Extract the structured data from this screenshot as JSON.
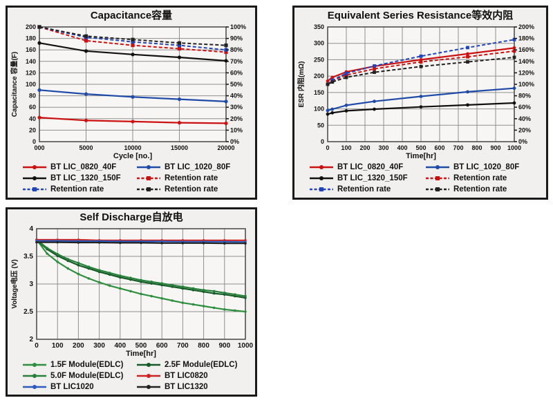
{
  "colors": {
    "panel_bg": "#f1f0ee",
    "plot_bg": "#f7f6f4",
    "grid": "#8f8f8f",
    "frame": "#444444",
    "red": "#cc1111",
    "blue": "#1f4aa8",
    "black": "#111111",
    "green_light": "#2f8f3f",
    "green_dark": "#155a26"
  },
  "chart_data": [
    {
      "type": "line",
      "title": "Capacitance容量",
      "y_left": {
        "label": "Capacitance 容量(F)",
        "min": 0,
        "max": 200,
        "tick_values": [
          0,
          20,
          40,
          60,
          80,
          100,
          120,
          140,
          160,
          180,
          200
        ],
        "tick_labels": [
          "0",
          "20",
          "40",
          "60",
          "80",
          "100",
          "120",
          "140",
          "160",
          "180",
          "200"
        ]
      },
      "y_right": {
        "min": 0,
        "max": 100,
        "tick_values": [
          0,
          10,
          20,
          30,
          40,
          50,
          60,
          70,
          80,
          90,
          100
        ],
        "tick_labels": [
          "0%",
          "10%",
          "20%",
          "30%",
          "40%",
          "50%",
          "60%",
          "70%",
          "80%",
          "90%",
          "100%"
        ]
      },
      "x_axis": {
        "label": "Cycle [no.]",
        "min": 0,
        "max": 20000,
        "tick_values": [
          0,
          5000,
          10000,
          15000,
          20000
        ],
        "tick_labels": [
          "000",
          "5000",
          "10000",
          "15000",
          "20000"
        ]
      },
      "series": [
        {
          "name": "BT LIC_0820_40F",
          "axis": "left",
          "color": "#cc1111",
          "dash": false,
          "x": [
            0,
            5000,
            10000,
            15000,
            20000
          ],
          "y": [
            42,
            37,
            35,
            33,
            32
          ]
        },
        {
          "name": "BT LIC_1020_80F",
          "axis": "left",
          "color": "#1f4aa8",
          "dash": false,
          "x": [
            0,
            5000,
            10000,
            15000,
            20000
          ],
          "y": [
            90,
            83,
            78,
            74,
            70
          ]
        },
        {
          "name": "BT LIC_1320_150F",
          "axis": "left",
          "color": "#111111",
          "dash": false,
          "x": [
            0,
            5000,
            10000,
            15000,
            20000
          ],
          "y": [
            172,
            158,
            152,
            147,
            141
          ]
        },
        {
          "name": "Retention rate",
          "axis": "right",
          "color": "#cc1111",
          "dash": true,
          "x": [
            0,
            5000,
            10000,
            15000,
            20000
          ],
          "y": [
            100,
            88,
            84,
            81,
            78
          ]
        },
        {
          "name": "Retention rate",
          "axis": "right",
          "color": "#2244bb",
          "dash": true,
          "x": [
            0,
            5000,
            10000,
            15000,
            20000
          ],
          "y": [
            100,
            91,
            87,
            84,
            80
          ]
        },
        {
          "name": "Retention rate",
          "axis": "right",
          "color": "#222222",
          "dash": true,
          "x": [
            0,
            5000,
            10000,
            15000,
            20000
          ],
          "y": [
            100,
            92,
            89,
            86,
            84
          ]
        }
      ]
    },
    {
      "type": "line",
      "title": "Equivalent Series Resistance等效内阻",
      "y_left": {
        "label": "ESR 内阻(mΩ)",
        "min": 0,
        "max": 350,
        "tick_values": [
          0,
          50,
          100,
          150,
          200,
          250,
          300,
          350
        ],
        "tick_labels": [
          "0",
          "50",
          "100",
          "150",
          "200",
          "250",
          "300",
          "350"
        ]
      },
      "y_right": {
        "min": 0,
        "max": 200,
        "tick_values": [
          0,
          20,
          40,
          60,
          80,
          100,
          120,
          140,
          160,
          180,
          200
        ],
        "tick_labels": [
          "0%",
          "20%",
          "40%",
          "60%",
          "80%",
          "100%",
          "120%",
          "140%",
          "160%",
          "180%",
          "200%"
        ]
      },
      "x_axis": {
        "label": "Time[hr]",
        "min": 0,
        "max": 1000,
        "tick_values": [
          0,
          100,
          200,
          300,
          400,
          500,
          600,
          700,
          800,
          900,
          1000
        ],
        "tick_labels": [
          "0",
          "100",
          "200",
          "300",
          "400",
          "500",
          "600",
          "700",
          "800",
          "900",
          "1000"
        ]
      },
      "series": [
        {
          "name": "BT LIC_0820_40F",
          "axis": "left",
          "color": "#cc1111",
          "dash": false,
          "x": [
            0,
            25,
            100,
            250,
            500,
            750,
            1000
          ],
          "y": [
            185,
            196,
            213,
            230,
            250,
            268,
            286
          ]
        },
        {
          "name": "BT LIC_1020_80F",
          "axis": "left",
          "color": "#1f4aa8",
          "dash": false,
          "x": [
            0,
            25,
            100,
            250,
            500,
            750,
            1000
          ],
          "y": [
            95,
            99,
            111,
            123,
            138,
            152,
            163
          ]
        },
        {
          "name": "BT LIC_1320_150F",
          "axis": "left",
          "color": "#111111",
          "dash": false,
          "x": [
            0,
            25,
            100,
            250,
            500,
            750,
            1000
          ],
          "y": [
            84,
            88,
            94,
            99,
            106,
            112,
            118
          ]
        },
        {
          "name": "Retention rate",
          "axis": "right",
          "color": "#cc1111",
          "dash": true,
          "x": [
            0,
            25,
            100,
            250,
            500,
            750,
            1000
          ],
          "y": [
            100,
            106,
            116,
            127,
            139,
            148,
            158
          ]
        },
        {
          "name": "Retention rate",
          "axis": "right",
          "color": "#2244bb",
          "dash": true,
          "x": [
            0,
            25,
            100,
            250,
            500,
            750,
            1000
          ],
          "y": [
            100,
            107,
            119,
            132,
            149,
            164,
            178
          ]
        },
        {
          "name": "Retention rate",
          "axis": "right",
          "color": "#222222",
          "dash": true,
          "x": [
            0,
            25,
            100,
            250,
            500,
            750,
            1000
          ],
          "y": [
            100,
            104,
            112,
            121,
            131,
            139,
            147
          ]
        }
      ]
    },
    {
      "type": "line",
      "title": "Self Discharge自放电",
      "y_left": {
        "label": "Voltage电压 (V)",
        "min": 2,
        "max": 4,
        "tick_values": [
          2,
          2.5,
          3,
          3.5,
          4
        ],
        "tick_labels": [
          "2",
          "2.5",
          "3",
          "3.5",
          "4"
        ]
      },
      "x_axis": {
        "label": "Time[hr]",
        "min": 0,
        "max": 1000,
        "tick_values": [
          0,
          100,
          200,
          300,
          400,
          500,
          600,
          700,
          800,
          900,
          1000
        ],
        "tick_labels": [
          "0",
          "100",
          "200",
          "300",
          "400",
          "500",
          "600",
          "700",
          "800",
          "900",
          "1000"
        ]
      },
      "series": [
        {
          "name": "1.5F Module(EDLC)",
          "axis": "left",
          "color": "#2f8f3f",
          "dash": false,
          "x": [
            0,
            50,
            100,
            150,
            200,
            250,
            300,
            350,
            400,
            450,
            500,
            550,
            600,
            650,
            700,
            750,
            800,
            850,
            900,
            950,
            1000
          ],
          "y": [
            3.8,
            3.55,
            3.4,
            3.28,
            3.18,
            3.1,
            3.03,
            2.97,
            2.92,
            2.87,
            2.82,
            2.78,
            2.74,
            2.7,
            2.66,
            2.63,
            2.6,
            2.57,
            2.54,
            2.52,
            2.5
          ]
        },
        {
          "name": "2.5F Module(EDLC)",
          "axis": "left",
          "color": "#155a26",
          "dash": false,
          "x": [
            0,
            50,
            100,
            150,
            200,
            250,
            300,
            350,
            400,
            450,
            500,
            550,
            600,
            650,
            700,
            750,
            800,
            850,
            900,
            950,
            1000
          ],
          "y": [
            3.8,
            3.63,
            3.51,
            3.42,
            3.34,
            3.28,
            3.22,
            3.17,
            3.12,
            3.08,
            3.04,
            3.01,
            2.98,
            2.95,
            2.92,
            2.89,
            2.86,
            2.83,
            2.81,
            2.78,
            2.75
          ]
        },
        {
          "name": "5.0F Module(EDLC)",
          "axis": "left",
          "color": "#27803a",
          "dash": false,
          "x": [
            0,
            50,
            100,
            150,
            200,
            250,
            300,
            350,
            400,
            450,
            500,
            550,
            600,
            650,
            700,
            750,
            800,
            850,
            900,
            950,
            1000
          ],
          "y": [
            3.8,
            3.65,
            3.54,
            3.45,
            3.38,
            3.31,
            3.25,
            3.2,
            3.15,
            3.11,
            3.07,
            3.04,
            3.01,
            2.98,
            2.95,
            2.92,
            2.89,
            2.87,
            2.84,
            2.81,
            2.78
          ]
        },
        {
          "name": "BT LIC0820",
          "axis": "left",
          "color": "#cc2222",
          "dash": false,
          "x": [
            0,
            100,
            200,
            300,
            400,
            500,
            600,
            700,
            800,
            900,
            1000
          ],
          "y": [
            3.8,
            3.8,
            3.8,
            3.79,
            3.79,
            3.79,
            3.79,
            3.79,
            3.79,
            3.79,
            3.79
          ]
        },
        {
          "name": "BT LIC1020",
          "axis": "left",
          "color": "#2a5bbf",
          "dash": false,
          "x": [
            0,
            100,
            200,
            300,
            400,
            500,
            600,
            700,
            800,
            900,
            1000
          ],
          "y": [
            3.78,
            3.78,
            3.775,
            3.775,
            3.77,
            3.77,
            3.77,
            3.765,
            3.765,
            3.765,
            3.76
          ]
        },
        {
          "name": "BT LIC1320",
          "axis": "left",
          "color": "#222222",
          "dash": false,
          "x": [
            0,
            100,
            200,
            300,
            400,
            500,
            600,
            700,
            800,
            900,
            1000
          ],
          "y": [
            3.755,
            3.755,
            3.75,
            3.75,
            3.745,
            3.745,
            3.74,
            3.74,
            3.74,
            3.735,
            3.735
          ]
        }
      ]
    }
  ]
}
